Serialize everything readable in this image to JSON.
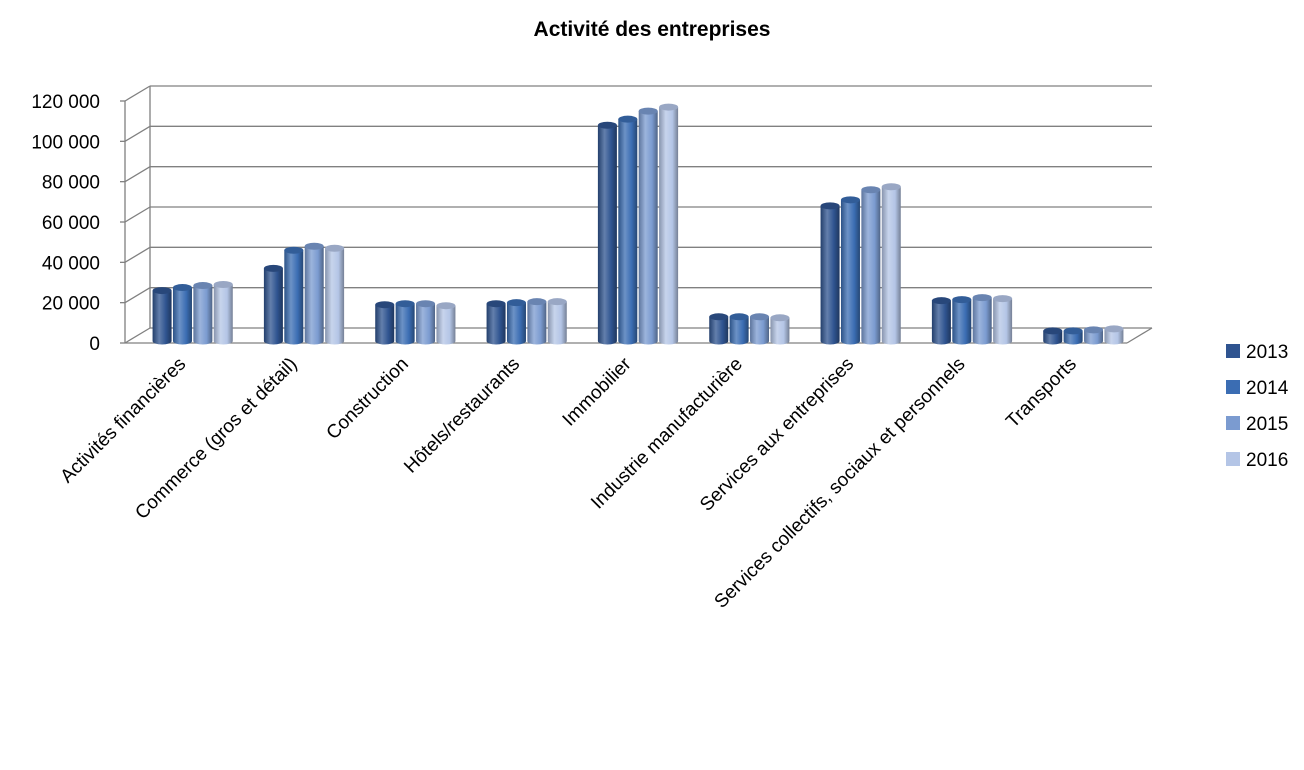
{
  "chart_data": {
    "type": "bar",
    "title": "Activité des entreprises",
    "xlabel": "",
    "ylabel": "",
    "ylim": [
      0,
      120000
    ],
    "y_ticks": [
      0,
      20000,
      40000,
      60000,
      80000,
      100000,
      120000
    ],
    "y_tick_labels": [
      "0",
      "20 000",
      "40 000",
      "60 000",
      "80 000",
      "100 000",
      "120 000"
    ],
    "grid": true,
    "legend_position": "right",
    "categories": [
      "Activités financières",
      "Commerce (gros et détail)",
      "Construction",
      "Hôtels/restaurants",
      "Immobilier",
      "Industrie manufacturière",
      "Services aux entreprises",
      "Services collectifs, sociaux et personnels",
      "Transports"
    ],
    "series": [
      {
        "name": "2013",
        "color": "#2f5490",
        "values": [
          25000,
          36000,
          18000,
          18500,
          107000,
          12000,
          67000,
          20000,
          5000
        ]
      },
      {
        "name": "2014",
        "color": "#3b6db3",
        "values": [
          26500,
          45000,
          18500,
          19000,
          110000,
          12000,
          70000,
          20500,
          5000
        ]
      },
      {
        "name": "2015",
        "color": "#7b9bd0",
        "values": [
          27500,
          47000,
          18500,
          19500,
          114000,
          12000,
          75000,
          21500,
          5500
        ]
      },
      {
        "name": "2016",
        "color": "#b4c5e6",
        "values": [
          28000,
          46000,
          17500,
          19500,
          116000,
          11500,
          76500,
          21000,
          6000
        ]
      }
    ]
  }
}
